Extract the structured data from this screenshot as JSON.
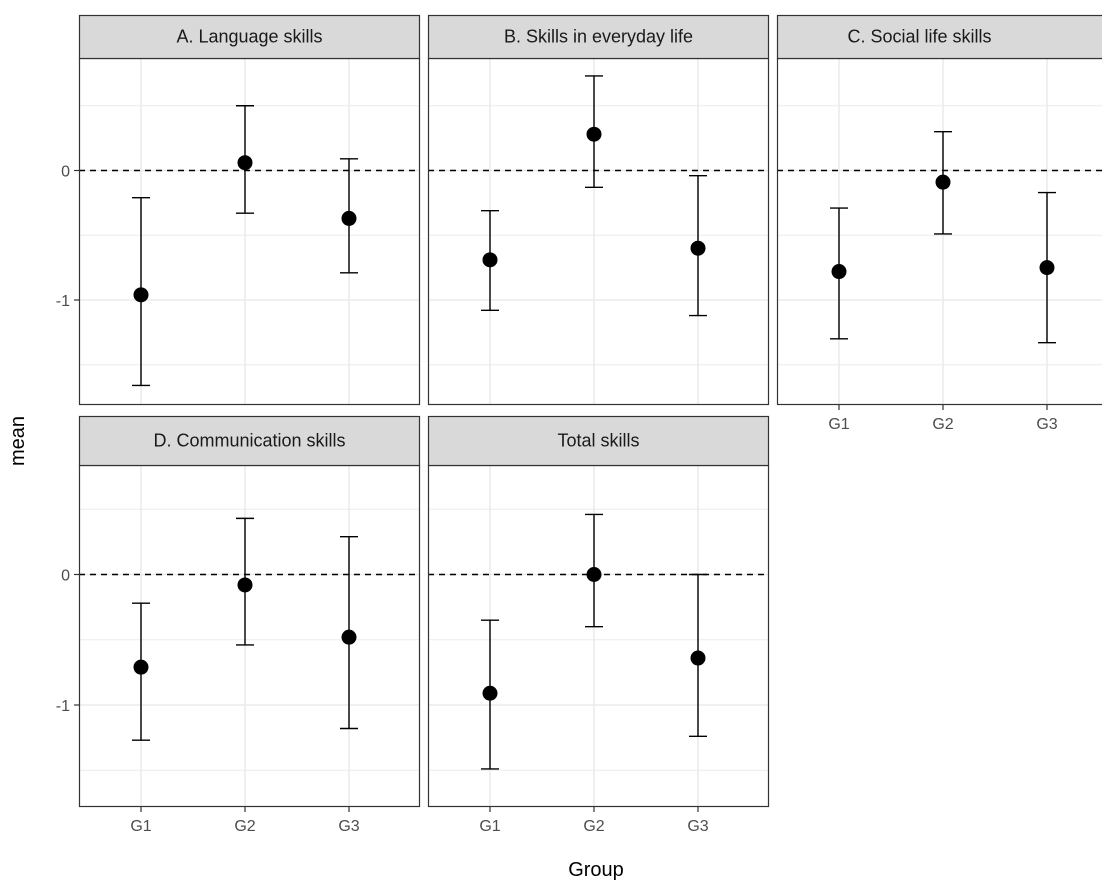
{
  "chart_data": {
    "type": "scatter",
    "subtype": "facet point estimates with error bars",
    "xlabel": "Group",
    "ylabel": "mean",
    "categories": [
      "G1",
      "G2",
      "G3"
    ],
    "yticks": [
      -1,
      0
    ],
    "ylim": [
      -1.8,
      0.85
    ],
    "reference_line": {
      "y": 0,
      "style": "dashed"
    },
    "grid": true,
    "colors": {
      "point": "#000000",
      "strip_bg": "#d9d9d9",
      "grid": "#ebebeb",
      "border": "#333333"
    },
    "panels": [
      {
        "title": "A. Language skills",
        "show_x_ticks": false,
        "points": [
          {
            "x": "G1",
            "y": -0.96,
            "lower": -1.66,
            "upper": -0.21
          },
          {
            "x": "G2",
            "y": 0.06,
            "lower": -0.33,
            "upper": 0.5
          },
          {
            "x": "G3",
            "y": -0.37,
            "lower": -0.79,
            "upper": 0.09
          }
        ]
      },
      {
        "title": "B. Skills in everyday life",
        "show_x_ticks": false,
        "points": [
          {
            "x": "G1",
            "y": -0.69,
            "lower": -1.08,
            "upper": -0.31
          },
          {
            "x": "G2",
            "y": 0.28,
            "lower": -0.13,
            "upper": 0.73
          },
          {
            "x": "G3",
            "y": -0.6,
            "lower": -1.12,
            "upper": -0.04
          }
        ]
      },
      {
        "title": "C. Social life skills",
        "show_x_ticks": true,
        "points": [
          {
            "x": "G1",
            "y": -0.78,
            "lower": -1.3,
            "upper": -0.29
          },
          {
            "x": "G2",
            "y": -0.09,
            "lower": -0.49,
            "upper": 0.3
          },
          {
            "x": "G3",
            "y": -0.75,
            "lower": -1.33,
            "upper": -0.17
          }
        ]
      },
      {
        "title": "D. Communication skills",
        "show_x_ticks": true,
        "points": [
          {
            "x": "G1",
            "y": -0.71,
            "lower": -1.27,
            "upper": -0.22
          },
          {
            "x": "G2",
            "y": -0.08,
            "lower": -0.54,
            "upper": 0.43
          },
          {
            "x": "G3",
            "y": -0.48,
            "lower": -1.18,
            "upper": 0.29
          }
        ]
      },
      {
        "title": "Total skills",
        "show_x_ticks": true,
        "points": [
          {
            "x": "G1",
            "y": -0.91,
            "lower": -1.49,
            "upper": -0.35
          },
          {
            "x": "G2",
            "y": 0.0,
            "lower": -0.4,
            "upper": 0.46
          },
          {
            "x": "G3",
            "y": -0.64,
            "lower": -1.24,
            "upper": 0.0
          }
        ]
      }
    ]
  }
}
